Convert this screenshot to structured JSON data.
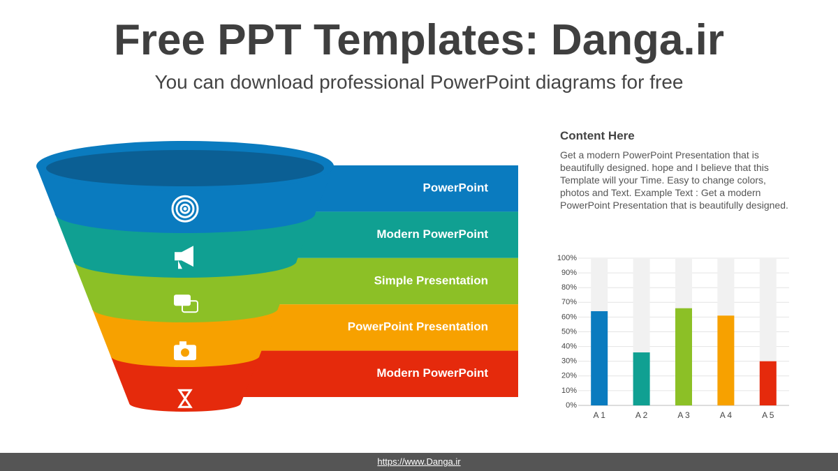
{
  "header": {
    "title": "Free PPT Templates: Danga.ir",
    "subtitle": "You can download professional PowerPoint diagrams for free"
  },
  "funnel": {
    "stages": [
      {
        "label": "PowerPoint",
        "color": "#0a7bbf"
      },
      {
        "label": "Modern  PowerPoint",
        "color": "#10a092"
      },
      {
        "label": "Simple Presentation",
        "color": "#8cc026"
      },
      {
        "label": "PowerPoint  Presentation",
        "color": "#f7a100"
      },
      {
        "label": "Modern  PowerPoint",
        "color": "#e52a0c"
      }
    ]
  },
  "content": {
    "title": "Content  Here",
    "body": "Get a modern PowerPoint  Presentation that is beautifully designed. hope and I believe that this Template will your Time. Easy to change colors, photos and Text. Example Text : Get a modern PowerPoint  Presentation that is beautifully designed."
  },
  "chart_data": {
    "type": "bar",
    "categories": [
      "A 1",
      "A 2",
      "A 3",
      "A 4",
      "A 5"
    ],
    "values": [
      64,
      36,
      66,
      61,
      30
    ],
    "colors": [
      "#0a7bbf",
      "#10a092",
      "#8cc026",
      "#f7a100",
      "#e52a0c"
    ],
    "ylim": [
      0,
      100
    ],
    "yticks": [
      {
        "value": 0,
        "label": "0%"
      },
      {
        "value": 10,
        "label": "10%"
      },
      {
        "value": 20,
        "label": "20%"
      },
      {
        "value": 30,
        "label": "30%"
      },
      {
        "value": 40,
        "label": "40%"
      },
      {
        "value": 50,
        "label": "50%"
      },
      {
        "value": 60,
        "label": "60%"
      },
      {
        "value": 70,
        "label": "70%"
      },
      {
        "value": 80,
        "label": "80%"
      },
      {
        "value": 90,
        "label": "90%"
      },
      {
        "value": 100,
        "label": "100%"
      }
    ],
    "grid": true
  },
  "footer": {
    "url": "https://www.Danga.ir"
  }
}
